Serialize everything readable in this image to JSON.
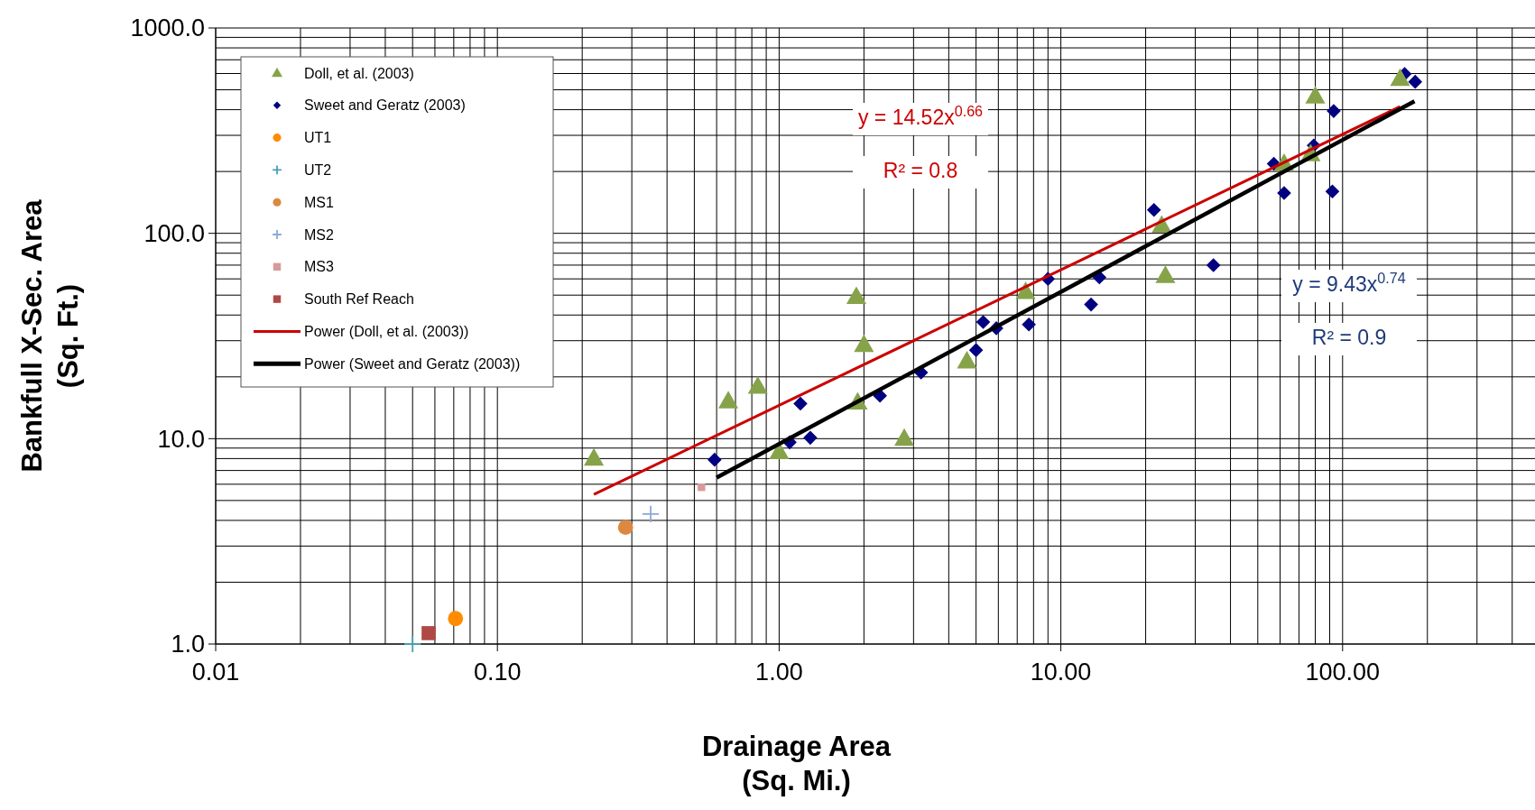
{
  "chart_data": {
    "type": "scatter",
    "xlabel": "Drainage Area\n(Sq. Mi.)",
    "ylabel": "Bankfull X-Sec. Area\n(Sq. Ft.)",
    "log": "xy",
    "grid": true,
    "legend": "top left",
    "xlim": [
      0.01,
      500
    ],
    "xticks": [
      {
        "value": 0.01,
        "label": "0.01"
      },
      {
        "value": 0.1,
        "label": "0.10"
      },
      {
        "value": 1,
        "label": "1.00"
      },
      {
        "value": 10,
        "label": "10.00"
      },
      {
        "value": 100,
        "label": "100.00"
      }
    ],
    "ylim": [
      1,
      1000
    ],
    "yticks": [
      {
        "value": 1,
        "label": "1.0"
      },
      {
        "value": 10,
        "label": "10.0"
      },
      {
        "value": 100,
        "label": "100.0"
      },
      {
        "value": 1000,
        "label": "1000.0"
      }
    ],
    "annotations": [
      "y = 14.52x$^{0.66}$",
      "R² = 0.8",
      "y = 9.43x$^{0.74}$",
      "R² = 0.9"
    ],
    "series": [
      {
        "name": "Doll, et al. (2003)",
        "color": "#86a34a",
        "marker": "triangle",
        "x": [
          0.22,
          0.66,
          0.84,
          1.0,
          1.88,
          2.0,
          1.9,
          2.78,
          4.64,
          7.5,
          22.8,
          23.5,
          62,
          77,
          80,
          160
        ],
        "values": [
          8.0,
          15.2,
          17.9,
          8.6,
          49,
          28.6,
          15.0,
          10,
          23.8,
          51.8,
          109,
          62,
          218,
          243,
          464,
          565
        ]
      },
      {
        "name": "Sweet and Geratz (2003)",
        "color": "#000080",
        "marker": "diamond",
        "x": [
          0.59,
          1.09,
          1.19,
          1.29,
          2.28,
          3.19,
          5.0,
          5.3,
          5.9,
          7.7,
          9.0,
          12.8,
          13.7,
          21.4,
          34.8,
          57,
          62,
          79,
          93,
          92,
          166,
          181
        ],
        "values": [
          7.9,
          9.6,
          14.8,
          10.1,
          16.2,
          21,
          27,
          37,
          34.5,
          36,
          60,
          45,
          61,
          130,
          70,
          218,
          157,
          268,
          394,
          160,
          597,
          547
        ]
      },
      {
        "name": "UT1",
        "color": "#ff8c00",
        "marker": "circle",
        "x": [
          0.071
        ],
        "values": [
          1.33
        ]
      },
      {
        "name": "UT2",
        "color": "#4a9eb5",
        "marker": "cross",
        "x": [
          0.05
        ],
        "values": [
          1.0
        ]
      },
      {
        "name": "MS1",
        "color": "#dd8840",
        "marker": "circle",
        "x": [
          0.285
        ],
        "values": [
          3.7
        ]
      },
      {
        "name": "MS2",
        "color": "#8fa8d8",
        "marker": "cross",
        "x": [
          0.35
        ],
        "values": [
          4.3
        ]
      },
      {
        "name": "MS3",
        "color": "#d89a9a",
        "marker": "square",
        "x": [
          0.53
        ],
        "values": [
          5.8
        ]
      },
      {
        "name": "South Ref Reach",
        "color": "#b04846",
        "marker": "square",
        "x": [
          0.057
        ],
        "values": [
          1.13
        ]
      },
      {
        "name": "Power (Doll, et al. (2003))",
        "type": "line",
        "color": "#cc0000",
        "marker": "none",
        "x": [
          0.22,
          160
        ],
        "values": [
          5.35,
          414
        ]
      },
      {
        "name": "Power (Sweet and Geratz (2003))",
        "type": "line",
        "color": "#000000",
        "marker": "none",
        "x": [
          0.6,
          180
        ],
        "values": [
          6.46,
          440
        ]
      }
    ]
  }
}
